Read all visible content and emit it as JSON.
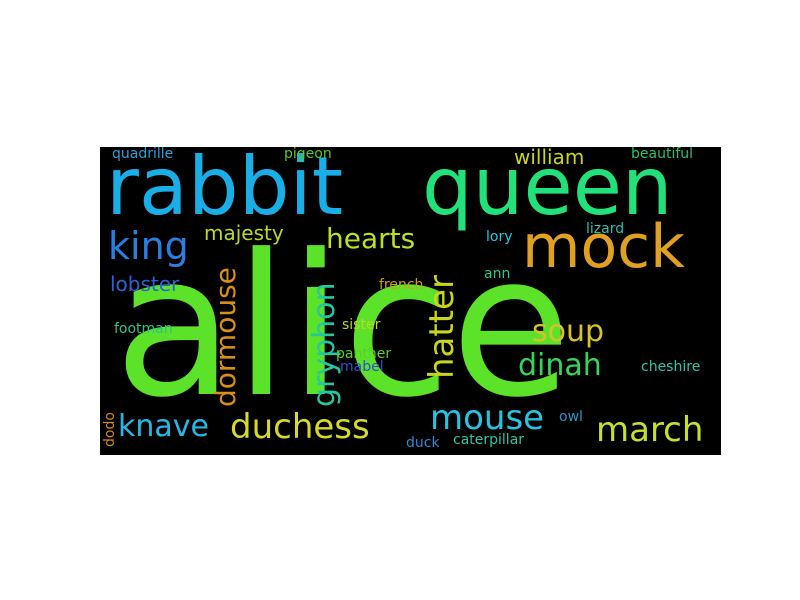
{
  "word_cloud": {
    "background": "#000000",
    "words": [
      {
        "text": "alice",
        "color": "#5de22a"
      },
      {
        "text": "rabbit",
        "color": "#1aaee6"
      },
      {
        "text": "queen",
        "color": "#22e07a"
      },
      {
        "text": "mock",
        "color": "#e0a020"
      },
      {
        "text": "king",
        "color": "#2a7ee0"
      },
      {
        "text": "majesty",
        "color": "#b9d72a"
      },
      {
        "text": "gryphon",
        "color": "#25c7a0"
      },
      {
        "text": "hearts",
        "color": "#b9e02a"
      },
      {
        "text": "hatter",
        "color": "#c8d41f"
      },
      {
        "text": "dormouse",
        "color": "#d88f18"
      },
      {
        "text": "lobster",
        "color": "#2b62d6"
      },
      {
        "text": "soup",
        "color": "#d6c22a"
      },
      {
        "text": "dinah",
        "color": "#35d45a"
      },
      {
        "text": "mouse",
        "color": "#25c4e0"
      },
      {
        "text": "march",
        "color": "#c4e02a"
      },
      {
        "text": "knave",
        "color": "#25b8e6"
      },
      {
        "text": "duchess",
        "color": "#d8d82a"
      },
      {
        "text": "william",
        "color": "#c7d51e"
      },
      {
        "text": "beautiful",
        "color": "#2ac06a"
      },
      {
        "text": "quadrille",
        "color": "#2aa0d8"
      },
      {
        "text": "pigeon",
        "color": "#55c82a"
      },
      {
        "text": "lizard",
        "color": "#2ac0b0"
      },
      {
        "text": "lory",
        "color": "#25c7e0"
      },
      {
        "text": "ann",
        "color": "#2ac890"
      },
      {
        "text": "french",
        "color": "#d09a1a"
      },
      {
        "text": "footman",
        "color": "#30c090"
      },
      {
        "text": "sister",
        "color": "#b8d82a"
      },
      {
        "text": "panther",
        "color": "#58d02a"
      },
      {
        "text": "mabel",
        "color": "#2a50d0"
      },
      {
        "text": "cheshire",
        "color": "#25c8a8"
      },
      {
        "text": "owl",
        "color": "#2596c8"
      },
      {
        "text": "duck",
        "color": "#2a8ad0"
      },
      {
        "text": "caterpillar",
        "color": "#2ac8a0"
      },
      {
        "text": "dodo",
        "color": "#d08a18"
      }
    ]
  }
}
